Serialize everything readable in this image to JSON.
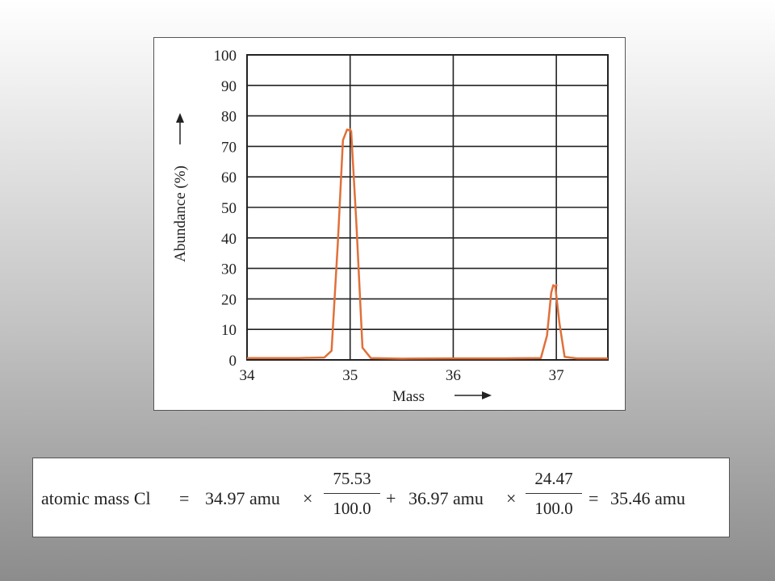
{
  "chart_data": {
    "type": "line",
    "xlabel": "Mass",
    "ylabel": "Abundance (%)",
    "xlim": [
      34,
      37.5
    ],
    "ylim": [
      0,
      100
    ],
    "x_ticks": [
      34,
      35,
      36,
      37
    ],
    "y_ticks": [
      0,
      10,
      20,
      30,
      40,
      50,
      60,
      70,
      80,
      90,
      100
    ],
    "grid": true,
    "series": [
      {
        "color": "#e0703a",
        "x": [
          34.0,
          34.5,
          34.75,
          34.82,
          34.88,
          34.93,
          34.97,
          35.01,
          35.06,
          35.12,
          35.2,
          35.5,
          36.0,
          36.5,
          36.85,
          36.91,
          36.95,
          36.97,
          36.99,
          37.03,
          37.08,
          37.2,
          37.5
        ],
        "y": [
          0.6,
          0.6,
          0.8,
          3,
          38,
          72,
          75.5,
          75,
          45,
          4,
          0.6,
          0.4,
          0.5,
          0.5,
          0.6,
          8,
          22,
          24.5,
          24,
          12,
          1,
          0.5,
          0.5
        ]
      }
    ],
    "peaks": [
      {
        "x": 35,
        "y": 75.53
      },
      {
        "x": 37,
        "y": 24.47
      }
    ]
  },
  "formula": {
    "lhs": "atomic mass Cl",
    "equals_1": "=",
    "term1_mass": "34.97 amu",
    "times_1": "×",
    "frac1_num": "75.53",
    "frac1_den": "100.0",
    "plus": "+",
    "term2_mass": "36.97 amu",
    "times_2": "×",
    "frac2_num": "24.47",
    "frac2_den": "100.0",
    "equals_2": "=",
    "result": "35.46 amu"
  }
}
